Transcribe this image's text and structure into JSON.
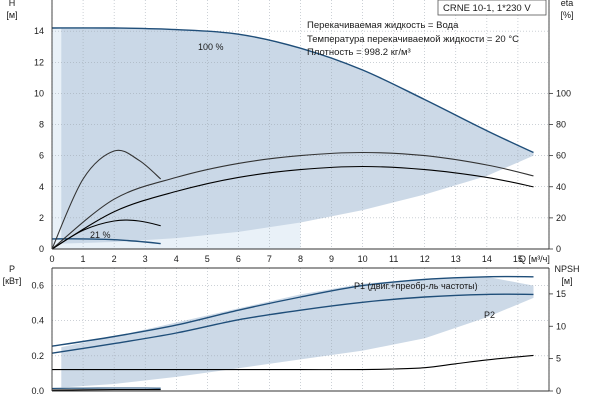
{
  "chart_data": [
    {
      "type": "line",
      "panel": "pump-curve",
      "title": "CRNE 10-1, 1*230 V",
      "annotations": [
        "Перекачиваемая жидкость = Вода",
        "Температура перекачиваемой жидкости = 20 °C",
        "Плотность = 998.2 кг/м³"
      ],
      "xlabel": "Q [м³/ч]",
      "xlim": [
        0,
        16
      ],
      "xticks": [
        "0",
        "1",
        "2",
        "3",
        "4",
        "5",
        "6",
        "7",
        "8",
        "9",
        "10",
        "11",
        "12",
        "13",
        "14",
        "15"
      ],
      "ylabel_left": "H\n[м]",
      "ylim_left": [
        0,
        16
      ],
      "yticks_left": [
        "0",
        "2",
        "4",
        "6",
        "8",
        "10",
        "12",
        "14"
      ],
      "ylabel_right": "eta\n[%]",
      "ylim_right": [
        0,
        160
      ],
      "yticks_right": [
        "0",
        "20",
        "40",
        "60",
        "80",
        "100"
      ],
      "grid": true,
      "curve_labels": [
        "100 %",
        "21 %"
      ],
      "series": [
        {
          "name": "100 %",
          "axis": "left",
          "color": "#1f4e79",
          "x": [
            0,
            2,
            4,
            6,
            8,
            10,
            12,
            14,
            15.5
          ],
          "y": [
            14.2,
            14.2,
            14.1,
            13.8,
            12.9,
            11.5,
            9.6,
            7.6,
            6.2
          ]
        },
        {
          "axis": "left",
          "color": "#1f4e79",
          "x": [
            0,
            1,
            2,
            3,
            3.5
          ],
          "y": [
            0.65,
            0.65,
            0.6,
            0.45,
            0.35
          ]
        },
        {
          "axis": "right",
          "color": "#000000",
          "x": [
            0,
            2,
            4,
            6,
            8,
            10,
            12,
            14,
            15.5
          ],
          "y": [
            0,
            24,
            37,
            46,
            51,
            53,
            51,
            46,
            40
          ]
        },
        {
          "axis": "right",
          "color": "#333333",
          "x": [
            0,
            2,
            4,
            6,
            8,
            10,
            12,
            14,
            15.5
          ],
          "y": [
            0,
            32,
            46,
            55,
            60,
            62,
            60,
            54,
            47
          ]
        },
        {
          "axis": "right",
          "color": "#000000",
          "x": [
            0,
            1,
            2,
            2.8,
            3.5
          ],
          "y": [
            0,
            12,
            18,
            18,
            15
          ]
        },
        {
          "axis": "right",
          "color": "#333333",
          "x": [
            0,
            1,
            2,
            2.8,
            3.5
          ],
          "y": [
            0,
            45,
            63,
            57,
            45
          ]
        }
      ],
      "operating_range": {
        "x": [
          0,
          2,
          4,
          6,
          8,
          10,
          12,
          14,
          15.5,
          15.5,
          14,
          12,
          10,
          8,
          6,
          4,
          2,
          0.3,
          0.3
        ],
        "y": [
          14.2,
          14.2,
          14.1,
          13.8,
          12.9,
          11.5,
          9.6,
          7.6,
          6.2,
          6.0,
          4.7,
          3.5,
          2.5,
          1.7,
          1.1,
          0.7,
          0.45,
          0.35,
          14.2
        ]
      }
    },
    {
      "type": "line",
      "panel": "power-npsh",
      "xlim": [
        0,
        16
      ],
      "ylabel_left": "P\n[кВт]",
      "ylim_left": [
        0,
        0.7
      ],
      "yticks_left": [
        "0.0",
        "0.2",
        "0.4",
        "0.6"
      ],
      "ylabel_right": "NPSH\n[м]",
      "ylim_right": [
        0,
        19
      ],
      "yticks_right": [
        "0",
        "5",
        "10",
        "15"
      ],
      "grid": true,
      "series": [
        {
          "name": "P1 (двиг.+преобр-ль частоты)",
          "axis": "left",
          "color": "#1f4e79",
          "x": [
            0,
            2,
            4,
            6,
            8,
            10,
            12,
            14,
            15.5
          ],
          "y": [
            0.255,
            0.31,
            0.375,
            0.46,
            0.535,
            0.6,
            0.635,
            0.65,
            0.65
          ]
        },
        {
          "name": "P2",
          "axis": "left",
          "color": "#1f4e79",
          "x": [
            0,
            2,
            4,
            6,
            8,
            10,
            12,
            14,
            15.5
          ],
          "y": [
            0.215,
            0.27,
            0.33,
            0.405,
            0.46,
            0.505,
            0.535,
            0.55,
            0.55
          ]
        },
        {
          "axis": "right",
          "color": "#000000",
          "x": [
            0,
            2,
            4,
            6,
            8,
            10,
            11,
            12,
            13,
            14,
            15.5
          ],
          "y": [
            3.3,
            3.3,
            3.3,
            3.3,
            3.3,
            3.3,
            3.4,
            3.6,
            4.2,
            4.8,
            5.5
          ]
        },
        {
          "axis": "left",
          "color": "#1f4e79",
          "x": [
            0,
            1,
            2,
            3,
            3.5
          ],
          "y": [
            0.015,
            0.016,
            0.017,
            0.017,
            0.016
          ]
        },
        {
          "axis": "left",
          "color": "#000000",
          "x": [
            0,
            1,
            2,
            3,
            3.5
          ],
          "y": [
            0.005,
            0.007,
            0.008,
            0.008,
            0.008
          ]
        }
      ],
      "operating_range": {
        "x": [
          0.3,
          2,
          4,
          6,
          8,
          10,
          12,
          14,
          15.5,
          15.5,
          14,
          12,
          10,
          8,
          6,
          4,
          2,
          0.3
        ],
        "y": [
          0.02,
          0.04,
          0.08,
          0.13,
          0.18,
          0.23,
          0.3,
          0.42,
          0.53,
          0.6,
          0.65,
          0.64,
          0.61,
          0.55,
          0.47,
          0.39,
          0.31,
          0.25
        ]
      }
    }
  ]
}
